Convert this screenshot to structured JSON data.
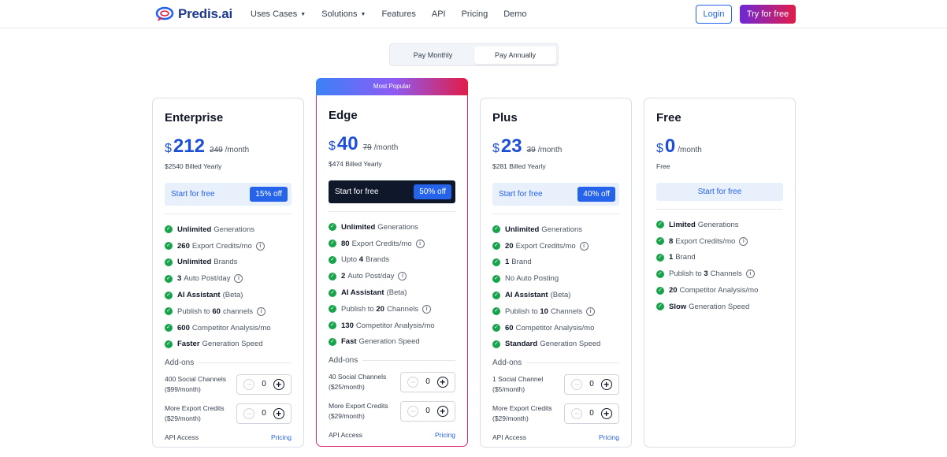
{
  "nav": {
    "logo_text": "Predis.ai",
    "links": [
      {
        "label": "Uses Cases",
        "has_caret": true
      },
      {
        "label": "Solutions",
        "has_caret": true
      },
      {
        "label": "Features",
        "has_caret": false
      },
      {
        "label": "API",
        "has_caret": false
      },
      {
        "label": "Pricing",
        "has_caret": false
      },
      {
        "label": "Demo",
        "has_caret": false
      }
    ],
    "login_label": "Login",
    "try_label": "Try for free"
  },
  "billing_toggle": {
    "monthly": "Pay Monthly",
    "annually": "Pay Annually",
    "selected": "annually"
  },
  "popular_label": "Most Popular",
  "plans": [
    {
      "name": "Enterprise",
      "currency": "$",
      "price": "212",
      "old_price": "249",
      "per": "/month",
      "billed": "$2540 Billed Yearly",
      "cta": "Start for free",
      "discount": "15% off",
      "features": [
        {
          "bold": "Unlimited",
          "text": "Generations",
          "info": false
        },
        {
          "bold": "260",
          "text": "Export Credits/mo",
          "info": true
        },
        {
          "bold": "Unlimited",
          "text": "Brands",
          "info": false
        },
        {
          "bold": "3",
          "text": "Auto Post/day",
          "info": true
        },
        {
          "bold": "AI Assistant",
          "text": "(Beta)",
          "info": false
        },
        {
          "pre": "Publish to",
          "bold": "60",
          "text": "channels",
          "info": true
        },
        {
          "bold": "600",
          "text": "Competitor Analysis/mo",
          "info": false
        },
        {
          "bold": "Faster",
          "text": "Generation Speed",
          "info": false
        }
      ],
      "addons_title": "Add-ons",
      "addons": [
        {
          "line1": "400 Social Channels",
          "line2": "($99/month)",
          "value": "0"
        },
        {
          "line1": "More Export Credits",
          "line2": "($29/month)",
          "value": "0"
        }
      ],
      "api_label": "API Access",
      "api_link": "Pricing"
    },
    {
      "name": "Edge",
      "currency": "$",
      "price": "40",
      "old_price": "79",
      "per": "/month",
      "billed": "$474 Billed Yearly",
      "cta": "Start for free",
      "discount": "50% off",
      "features": [
        {
          "bold": "Unlimited",
          "text": "Generations",
          "info": false
        },
        {
          "bold": "80",
          "text": "Export Credits/mo",
          "info": true
        },
        {
          "pre": "Upto",
          "bold": "4",
          "text": "Brands",
          "info": false
        },
        {
          "bold": "2",
          "text": "Auto Post/day",
          "info": true
        },
        {
          "bold": "AI Assistant",
          "text": "(Beta)",
          "info": false
        },
        {
          "pre": "Publish to",
          "bold": "20",
          "text": "Channels",
          "info": true
        },
        {
          "bold": "130",
          "text": "Competitor Analysis/mo",
          "info": false
        },
        {
          "bold": "Fast",
          "text": "Generation Speed",
          "info": false
        }
      ],
      "addons_title": "Add-ons",
      "addons": [
        {
          "line1": "40 Social Channels",
          "line2": "($25/month)",
          "value": "0"
        },
        {
          "line1": "More Export Credits",
          "line2": "($29/month)",
          "value": "0"
        }
      ],
      "api_label": "API Access",
      "api_link": "Pricing"
    },
    {
      "name": "Plus",
      "currency": "$",
      "price": "23",
      "old_price": "39",
      "per": "/month",
      "billed": "$281 Billed Yearly",
      "cta": "Start for free",
      "discount": "40% off",
      "features": [
        {
          "bold": "Unlimited",
          "text": "Generations",
          "info": false
        },
        {
          "bold": "20",
          "text": "Export Credits/mo",
          "info": true
        },
        {
          "bold": "1",
          "text": "Brand",
          "info": false
        },
        {
          "text": "No Auto Posting",
          "info": false
        },
        {
          "bold": "AI Assistant",
          "text": "(Beta)",
          "info": false
        },
        {
          "pre": "Publish to",
          "bold": "10",
          "text": "Channels",
          "info": true
        },
        {
          "bold": "60",
          "text": "Competitor Analysis/mo",
          "info": false
        },
        {
          "bold": "Standard",
          "text": "Generation Speed",
          "info": false
        }
      ],
      "addons_title": "Add-ons",
      "addons": [
        {
          "line1": "1 Social Channel",
          "line2": "($5/month)",
          "value": "0"
        },
        {
          "line1": "More Export Credits",
          "line2": "($29/month)",
          "value": "0"
        }
      ],
      "api_label": "API Access",
      "api_link": "Pricing"
    },
    {
      "name": "Free",
      "currency": "$",
      "price": "0",
      "per": "/month",
      "billed": "Free",
      "cta": "Start for free",
      "features": [
        {
          "bold": "Limited",
          "text": "Generations",
          "info": false
        },
        {
          "bold": "8",
          "text": "Export Credits/mo",
          "info": true
        },
        {
          "bold": "1",
          "text": "Brand",
          "info": false
        },
        {
          "pre": "Publish to",
          "bold": "3",
          "text": "Channels",
          "info": true
        },
        {
          "bold": "20",
          "text": "Competitor Analysis/mo",
          "info": false
        },
        {
          "bold": "Slow",
          "text": "Generation Speed",
          "info": false
        }
      ]
    }
  ]
}
